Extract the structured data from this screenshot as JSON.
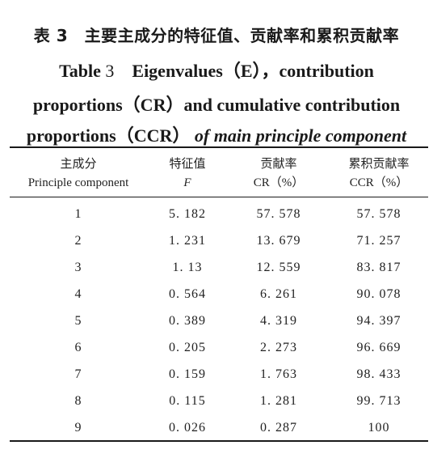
{
  "title": {
    "cn": "表 3　主要主成分的特征值、贡献率和累积贡献率",
    "en_line1_prefix": "Table",
    "en_line1_num": "3",
    "en_line1_rest": "Eigenvalues（E），contribution",
    "en_line2": "proportions（CR）and cumulative contribution",
    "en_line3_a": "proportions（CCR）",
    "en_line3_b": "of main principle component"
  },
  "header": {
    "col1_cn": "主成分",
    "col1_en": "Principle component",
    "col2_cn": "特征值",
    "col2_en": "F",
    "col3_cn": "贡献率",
    "col3_en": "CR（%）",
    "col4_cn": "累积贡献率",
    "col4_en": "CCR（%）"
  },
  "rows": [
    {
      "pc": "1",
      "f": "5. 182",
      "cr": "57. 578",
      "ccr": "57. 578"
    },
    {
      "pc": "2",
      "f": "1. 231",
      "cr": "13. 679",
      "ccr": "71. 257"
    },
    {
      "pc": "3",
      "f": "1. 13",
      "cr": "12. 559",
      "ccr": "83. 817"
    },
    {
      "pc": "4",
      "f": "0. 564",
      "cr": "6. 261",
      "ccr": "90. 078"
    },
    {
      "pc": "5",
      "f": "0. 389",
      "cr": "4. 319",
      "ccr": "94. 397"
    },
    {
      "pc": "6",
      "f": "0. 205",
      "cr": "2. 273",
      "ccr": "96. 669"
    },
    {
      "pc": "7",
      "f": "0. 159",
      "cr": "1. 763",
      "ccr": "98. 433"
    },
    {
      "pc": "8",
      "f": "0. 115",
      "cr": "1. 281",
      "ccr": "99. 713"
    },
    {
      "pc": "9",
      "f": "0. 026",
      "cr": "0. 287",
      "ccr": "100"
    }
  ]
}
